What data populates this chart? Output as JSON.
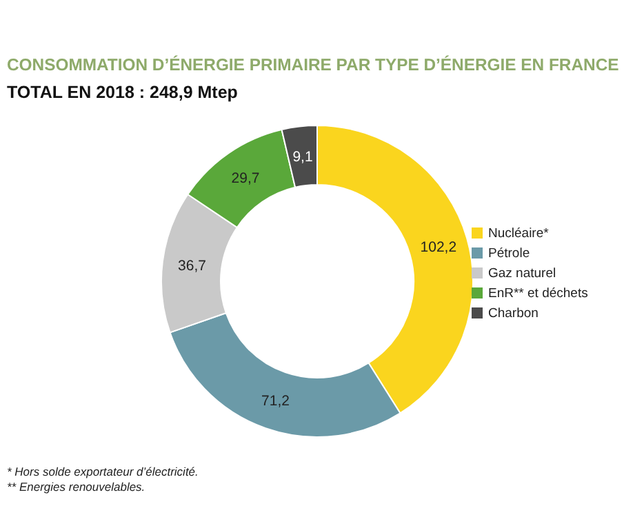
{
  "chart_data": {
    "type": "donut",
    "title": "CONSOMMATION D’ÉNERGIE PRIMAIRE PAR TYPE D’ÉNERGIE EN FRANCE",
    "subtitle": "TOTAL EN 2018 : 248,9 Mtep",
    "categories": [
      "Nucléaire*",
      "Pétrole",
      "Gaz naturel",
      "EnR** et déchets",
      "Charbon"
    ],
    "values": [
      102.2,
      71.2,
      36.7,
      29.7,
      9.1
    ],
    "colors": [
      "#fad51e",
      "#6b9aa8",
      "#c9c9c9",
      "#5aa83a",
      "#4b4b4b"
    ],
    "value_labels": [
      "102,2",
      "71,2",
      "36,7",
      "29,7",
      "9,1"
    ],
    "legend": "right",
    "annotations": [
      "* Hors solde exportateur d’électricité.",
      "** Energies renouvelables."
    ]
  }
}
